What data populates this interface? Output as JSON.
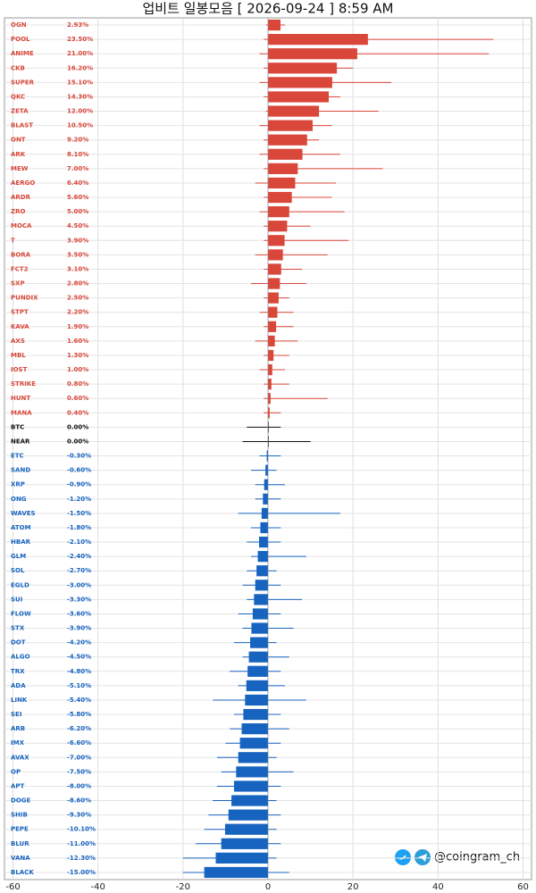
{
  "chart_data": {
    "type": "candlestick",
    "title": "업비트 일봉모음 [ 2026-09-24 ]  8:59 AM",
    "watermark": "@coingram_ch",
    "up_color": "#d9473a",
    "down_color": "#1764c0",
    "flat_color": "#111111",
    "grid": true,
    "xlim": [
      -62,
      62
    ],
    "xticks": [
      -60,
      -40,
      -20,
      0,
      20,
      40,
      60
    ],
    "categories": [
      "OGN",
      "POOL",
      "ANIME",
      "CKB",
      "SUPER",
      "QKC",
      "ZETA",
      "BLAST",
      "ONT",
      "ARK",
      "MEW",
      "AERGO",
      "ARDR",
      "ZRO",
      "MOCA",
      "T",
      "BORA",
      "FCT2",
      "SXP",
      "PUNDIX",
      "STPT",
      "KAVA",
      "AXS",
      "MBL",
      "IOST",
      "STRIKE",
      "HUNT",
      "MANA",
      "BTC",
      "NEAR",
      "ETC",
      "SAND",
      "XRP",
      "ONG",
      "WAVES",
      "ATOM",
      "HBAR",
      "GLM",
      "SOL",
      "EGLD",
      "SUI",
      "FLOW",
      "STX",
      "DOT",
      "ALGO",
      "TRX",
      "ADA",
      "LINK",
      "SEI",
      "ARB",
      "IMX",
      "AVAX",
      "OP",
      "APT",
      "DOGE",
      "SHIB",
      "PEPE",
      "BLUR",
      "VANA",
      "BLACK"
    ],
    "values": [
      2.93,
      23.5,
      21.0,
      16.2,
      15.1,
      14.3,
      12.0,
      10.5,
      9.2,
      8.1,
      7.0,
      6.4,
      5.6,
      5.0,
      4.5,
      3.9,
      3.5,
      3.1,
      2.8,
      2.5,
      2.2,
      1.9,
      1.6,
      1.3,
      1.0,
      0.8,
      0.6,
      0.4,
      0,
      0,
      -0.3,
      -0.6,
      -0.9,
      -1.2,
      -1.5,
      -1.8,
      -2.1,
      -2.4,
      -2.7,
      -3.0,
      -3.3,
      -3.6,
      -3.9,
      -4.2,
      -4.5,
      -4.8,
      -5.1,
      -5.4,
      -5.8,
      -6.2,
      -6.6,
      -7.0,
      -7.5,
      -8.0,
      -8.6,
      -9.3,
      -10.1,
      -11.0,
      -12.3,
      -15.0
    ],
    "value_labels": [
      "2.93%",
      "23.50%",
      "21.00%",
      "16.20%",
      "15.10%",
      "14.30%",
      "12.00%",
      "10.50%",
      "9.20%",
      "8.10%",
      "7.00%",
      "6.40%",
      "5.60%",
      "5.00%",
      "4.50%",
      "3.90%",
      "3.50%",
      "3.10%",
      "2.80%",
      "2.50%",
      "2.20%",
      "1.90%",
      "1.60%",
      "1.30%",
      "1.00%",
      "0.80%",
      "0.60%",
      "0.40%",
      "0.00%",
      "0.00%",
      "-0.30%",
      "-0.60%",
      "-0.90%",
      "-1.20%",
      "-1.50%",
      "-1.80%",
      "-2.10%",
      "-2.40%",
      "-2.70%",
      "-3.00%",
      "-3.30%",
      "-3.60%",
      "-3.90%",
      "-4.20%",
      "-4.50%",
      "-4.80%",
      "-5.10%",
      "-5.40%",
      "-5.80%",
      "-6.20%",
      "-6.60%",
      "-7.00%",
      "-7.50%",
      "-8.00%",
      "-8.60%",
      "-9.30%",
      "-10.10%",
      "-11.00%",
      "-12.30%",
      "-15.00%"
    ],
    "low": [
      -0.5,
      -1,
      -2,
      -1,
      -2,
      -1,
      -0.5,
      -2,
      -1,
      -2,
      -1,
      -3,
      -1,
      -2,
      -1,
      -1,
      -3,
      -1,
      -4,
      -1,
      -2,
      -1,
      -3,
      -1,
      -2,
      -1,
      -1,
      -1,
      -5,
      -6,
      -2,
      -4,
      -3,
      -3,
      -7,
      -4,
      -5,
      -4,
      -5,
      -6,
      -5,
      -7,
      -6,
      -8,
      -6,
      -9,
      -7,
      -13,
      -8,
      -9,
      -10,
      -12,
      -11,
      -12,
      -13,
      -14,
      -15,
      -17,
      -20,
      -20
    ],
    "high": [
      4,
      53,
      52,
      20,
      29,
      17,
      26,
      15,
      12,
      17,
      27,
      16,
      15,
      18,
      10,
      19,
      14,
      8,
      9,
      5,
      6,
      6,
      7,
      5,
      4,
      5,
      14,
      3,
      3,
      10,
      3,
      2,
      4,
      3,
      17,
      3,
      3,
      9,
      2,
      3,
      8,
      3,
      6,
      2,
      5,
      3,
      4,
      9,
      3,
      5,
      3,
      2,
      6,
      3,
      2,
      3,
      2,
      3,
      2,
      5
    ]
  }
}
